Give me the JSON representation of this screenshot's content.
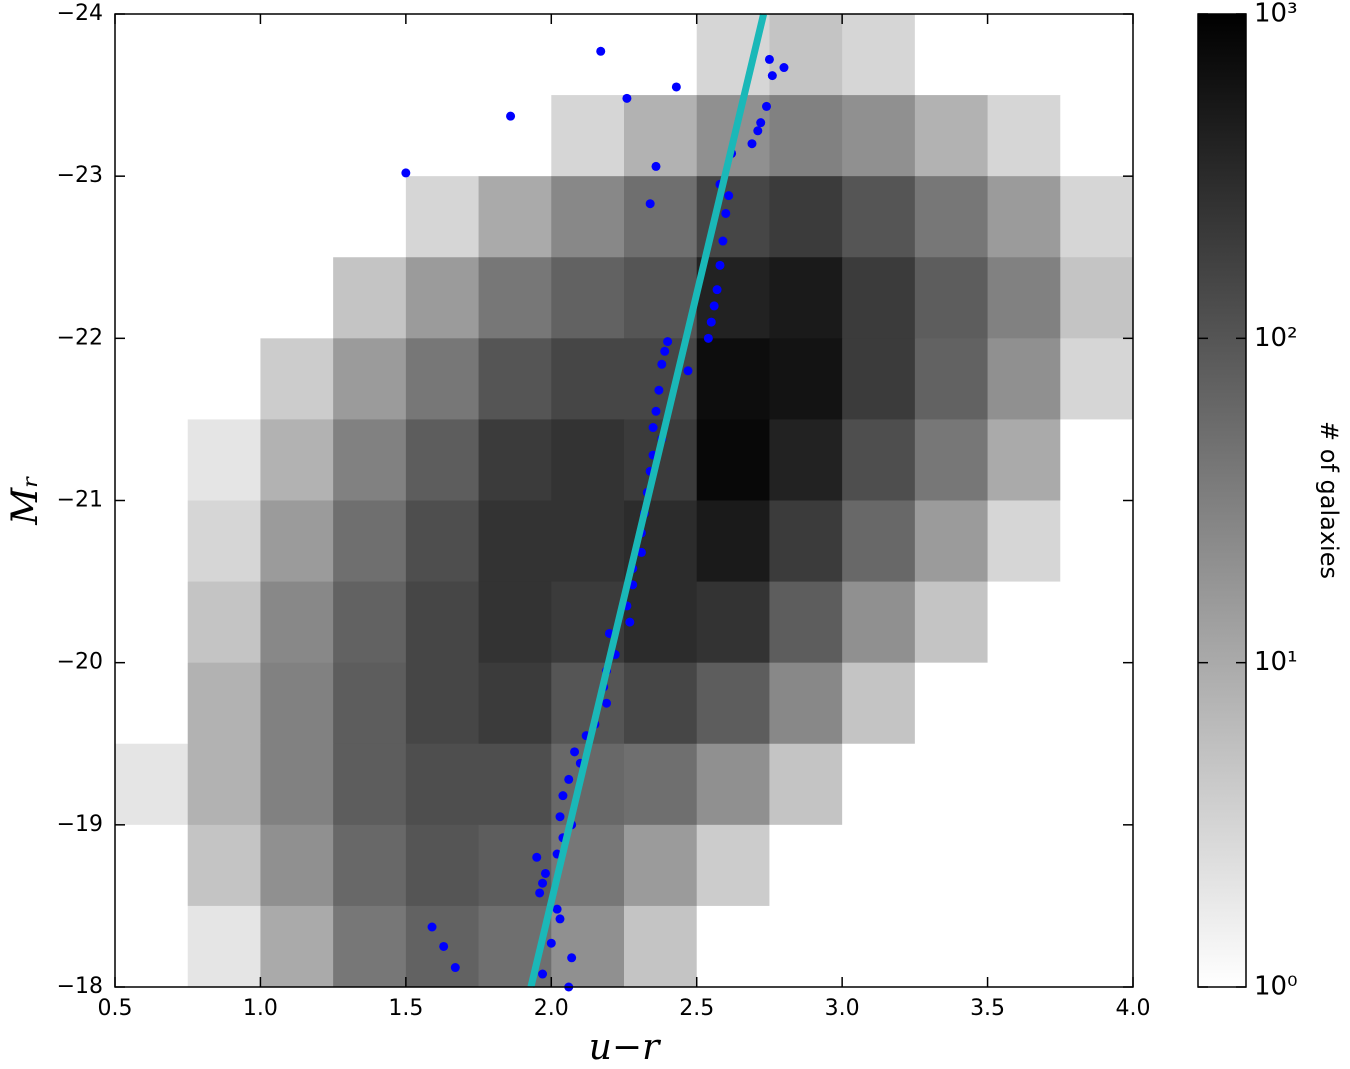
{
  "chart_data": {
    "type": "hist2d",
    "xlabel": "u−r",
    "ylabel": "Mᵣ",
    "xlim": [
      0.5,
      4.0
    ],
    "ylim": [
      -18,
      -24
    ],
    "xticks": [
      {
        "value": 0.5,
        "label": "0.5"
      },
      {
        "value": 1.0,
        "label": "1.0"
      },
      {
        "value": 1.5,
        "label": "1.5"
      },
      {
        "value": 2.0,
        "label": "2.0"
      },
      {
        "value": 2.5,
        "label": "2.5"
      },
      {
        "value": 3.0,
        "label": "3.0"
      },
      {
        "value": 3.5,
        "label": "3.5"
      },
      {
        "value": 4.0,
        "label": "4.0"
      }
    ],
    "yticks": [
      {
        "value": -24,
        "label": "−24"
      },
      {
        "value": -23,
        "label": "−23"
      },
      {
        "value": -22,
        "label": "−22"
      },
      {
        "value": -21,
        "label": "−21"
      },
      {
        "value": -20,
        "label": "−20"
      },
      {
        "value": -19,
        "label": "−19"
      },
      {
        "value": -18,
        "label": "−18"
      }
    ],
    "heatmap": {
      "x_bins": [
        0.5,
        0.75,
        1.0,
        1.25,
        1.5,
        1.75,
        2.0,
        2.25,
        2.5,
        2.75,
        3.0,
        3.25,
        3.5,
        3.75,
        4.0
      ],
      "y_bins": [
        -24,
        -23.5,
        -23,
        -22.5,
        -22,
        -21.5,
        -21,
        -20.5,
        -20,
        -19.5,
        -19,
        -18.5,
        -18
      ],
      "counts": [
        [
          0,
          0,
          0,
          0,
          0,
          0,
          0,
          1,
          3,
          5,
          3,
          1,
          0,
          0
        ],
        [
          0,
          0,
          0,
          0,
          0,
          1,
          3,
          8,
          20,
          30,
          20,
          8,
          3,
          1
        ],
        [
          0,
          0,
          0,
          1,
          3,
          10,
          25,
          50,
          150,
          200,
          100,
          40,
          15,
          3
        ],
        [
          0,
          0,
          1,
          5,
          15,
          40,
          70,
          100,
          400,
          500,
          200,
          80,
          30,
          5
        ],
        [
          0,
          1,
          4,
          15,
          40,
          100,
          150,
          150,
          700,
          600,
          200,
          70,
          20,
          3
        ],
        [
          0,
          2,
          8,
          30,
          80,
          200,
          250,
          200,
          800,
          400,
          120,
          40,
          10,
          1
        ],
        [
          1,
          3,
          15,
          50,
          120,
          250,
          250,
          300,
          500,
          200,
          60,
          15,
          3,
          0
        ],
        [
          1,
          5,
          25,
          70,
          150,
          250,
          200,
          300,
          250,
          80,
          20,
          5,
          1,
          0
        ],
        [
          1,
          8,
          30,
          80,
          150,
          200,
          100,
          150,
          80,
          25,
          5,
          1,
          0,
          0
        ],
        [
          2,
          8,
          30,
          80,
          120,
          120,
          60,
          50,
          20,
          5,
          1,
          0,
          0,
          0
        ],
        [
          1,
          5,
          20,
          60,
          100,
          80,
          40,
          15,
          4,
          1,
          0,
          0,
          0,
          0
        ],
        [
          0,
          2,
          10,
          40,
          70,
          50,
          20,
          5,
          1,
          0,
          0,
          0,
          0,
          0
        ]
      ]
    },
    "colorbar": {
      "label": "# of galaxies",
      "scale": "log",
      "lim": [
        1,
        1000
      ],
      "ticks": [
        {
          "value": 1,
          "label": "10⁰"
        },
        {
          "value": 10,
          "label": "10¹"
        },
        {
          "value": 100,
          "label": "10²"
        },
        {
          "value": 1000,
          "label": "10³"
        }
      ]
    },
    "series": [
      {
        "type": "scatter",
        "color": "#0000ff",
        "x": [
          2.17,
          2.26,
          2.43,
          1.86,
          1.5,
          2.36,
          2.34,
          2.75,
          2.8,
          2.76,
          2.74,
          2.72,
          2.71,
          2.69,
          2.62,
          2.58,
          2.61,
          2.6,
          2.59,
          2.58,
          2.57,
          2.56,
          2.55,
          2.54,
          2.4,
          2.39,
          2.38,
          2.47,
          2.37,
          2.36,
          2.35,
          2.38,
          2.35,
          2.34,
          2.33,
          2.32,
          2.31,
          2.31,
          2.28,
          2.28,
          2.26,
          2.27,
          2.2,
          2.22,
          2.19,
          2.18,
          2.19,
          2.15,
          2.12,
          2.08,
          2.1,
          2.06,
          2.04,
          2.03,
          2.07,
          2.04,
          2.02,
          1.95,
          1.98,
          1.97,
          1.96,
          2.02,
          2.03,
          2.0,
          2.07,
          1.59,
          1.63,
          1.67,
          1.97,
          2.06
        ],
        "y": [
          -23.77,
          -23.48,
          -23.55,
          -23.37,
          -23.02,
          -23.06,
          -22.83,
          -23.72,
          -23.67,
          -23.62,
          -23.43,
          -23.33,
          -23.28,
          -23.2,
          -23.14,
          -22.95,
          -22.88,
          -22.77,
          -22.6,
          -22.45,
          -22.3,
          -22.2,
          -22.1,
          -22.0,
          -21.98,
          -21.92,
          -21.84,
          -21.8,
          -21.68,
          -21.55,
          -21.45,
          -21.38,
          -21.28,
          -21.18,
          -21.05,
          -20.92,
          -20.8,
          -20.68,
          -20.58,
          -20.48,
          -20.35,
          -20.25,
          -20.18,
          -20.05,
          -19.95,
          -19.85,
          -19.75,
          -19.62,
          -19.55,
          -19.45,
          -19.38,
          -19.28,
          -19.18,
          -19.05,
          -19.0,
          -18.92,
          -18.82,
          -18.8,
          -18.7,
          -18.64,
          -18.58,
          -18.48,
          -18.42,
          -18.27,
          -18.18,
          -18.37,
          -18.25,
          -18.12,
          -18.08,
          -18.0
        ]
      },
      {
        "type": "line",
        "color": "#1ab8b8",
        "x": [
          1.93,
          2.73
        ],
        "y": [
          -18,
          -24
        ]
      }
    ]
  }
}
